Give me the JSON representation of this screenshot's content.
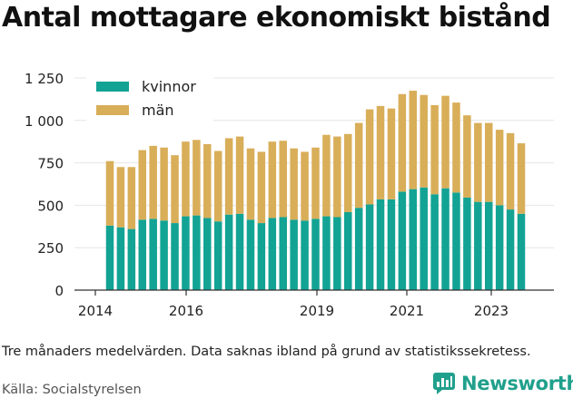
{
  "title": "Antal mottagare ekonomiskt bistånd",
  "footnote": "Tre månaders medelvärden. Data saknas ibland på grund av statistikssekretess.",
  "source": "Källa: Socialstyrelsen",
  "brand": "Newsworthy",
  "colors": {
    "kvinnor": "#12a394",
    "man": "#d9ae59",
    "brand": "#20a08c"
  },
  "chart_data": {
    "type": "bar",
    "stacked": true,
    "x_tick_labels": [
      "2014",
      "2016",
      "2019",
      "2021",
      "2023"
    ],
    "y_tick_labels": [
      "0",
      "250",
      "500",
      "750",
      "1 000",
      "1 250"
    ],
    "ylim": [
      0,
      1250
    ],
    "legend_position": "top-left",
    "series": [
      {
        "name": "kvinnor",
        "values": [
          380,
          370,
          360,
          415,
          420,
          410,
          395,
          435,
          440,
          425,
          405,
          445,
          450,
          415,
          395,
          425,
          430,
          415,
          410,
          420,
          435,
          430,
          460,
          485,
          505,
          535,
          535,
          580,
          595,
          605,
          565,
          600,
          575,
          545,
          520,
          520,
          500,
          475,
          450
        ]
      },
      {
        "name": "män",
        "values": [
          380,
          355,
          365,
          410,
          430,
          430,
          400,
          440,
          445,
          435,
          415,
          450,
          455,
          420,
          420,
          450,
          450,
          420,
          405,
          420,
          480,
          475,
          460,
          500,
          560,
          550,
          535,
          575,
          580,
          545,
          525,
          545,
          530,
          485,
          465,
          465,
          445,
          450,
          415
        ]
      }
    ]
  }
}
